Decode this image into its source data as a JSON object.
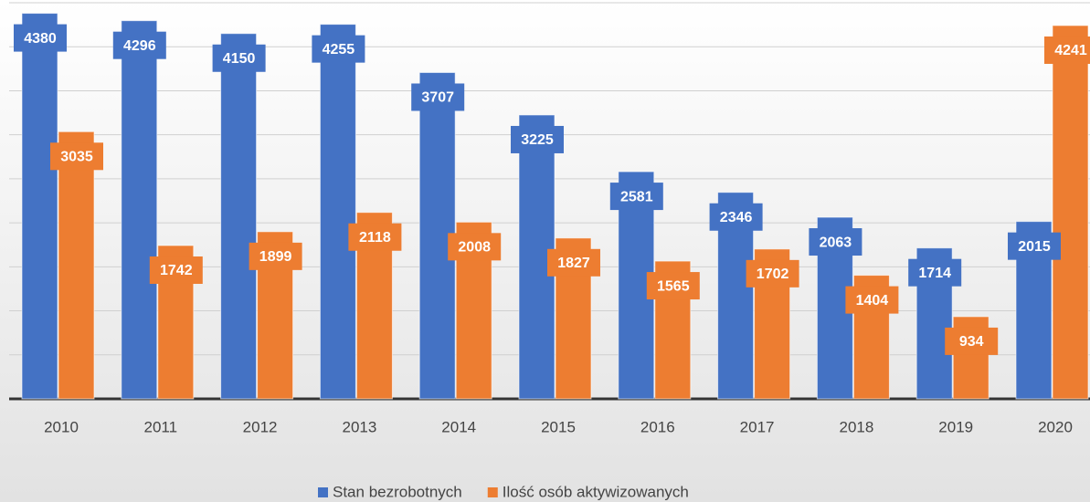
{
  "chart_data": {
    "type": "bar",
    "categories": [
      "2010",
      "2011",
      "2012",
      "2013",
      "2014",
      "2015",
      "2016",
      "2017",
      "2018",
      "2019",
      "2020"
    ],
    "series": [
      {
        "name": "Stan bezrobotnych",
        "color": "#4472c4",
        "values": [
          4380,
          4296,
          4150,
          4255,
          3707,
          3225,
          2581,
          2346,
          2063,
          1714,
          2015
        ]
      },
      {
        "name": "Ilość osób aktywizowanych",
        "color": "#ed7d31",
        "values": [
          3035,
          1742,
          1899,
          2118,
          2008,
          1827,
          1565,
          1702,
          1404,
          934,
          4241
        ]
      }
    ],
    "ylim": [
      0,
      4500
    ],
    "yticks": [
      0,
      500,
      1000,
      1500,
      2000,
      2500,
      3000,
      3500,
      4000,
      4500
    ],
    "grid": true
  }
}
